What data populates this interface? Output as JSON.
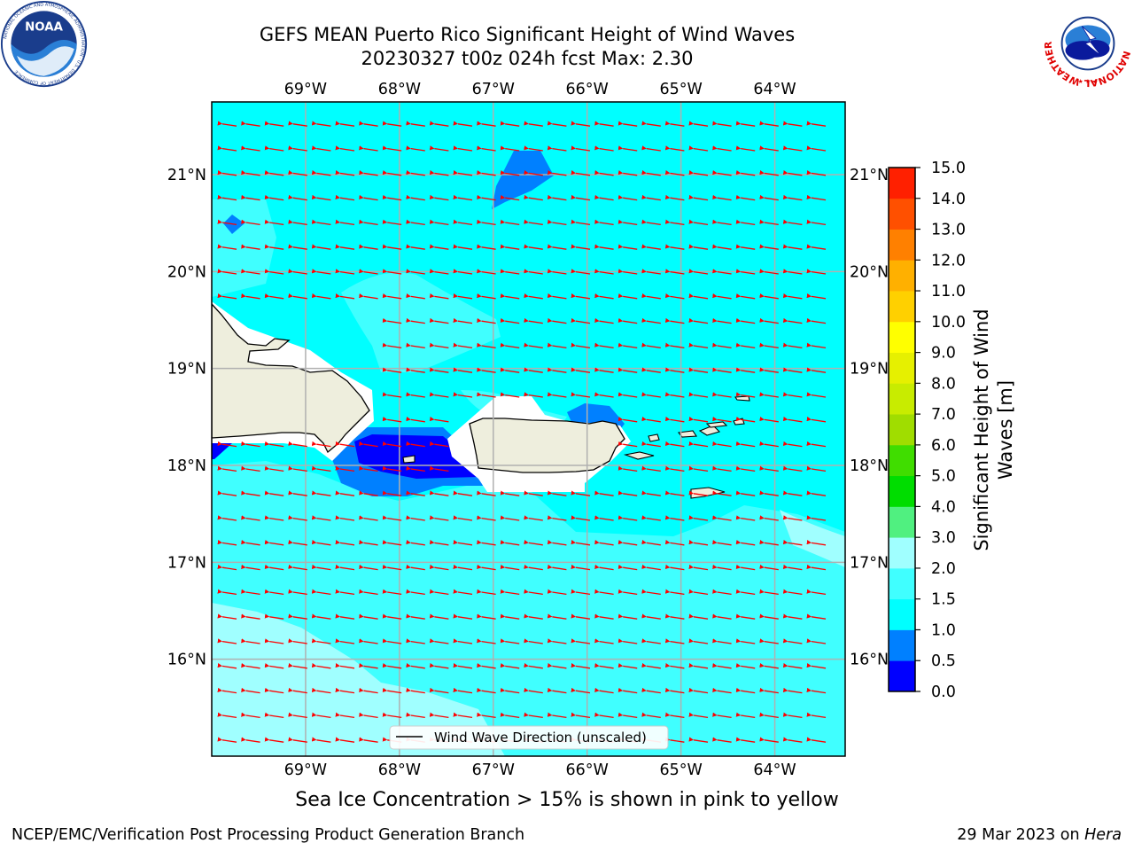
{
  "header": {
    "title_line1": "GEFS MEAN Puerto Rico Significant Height of Wind Waves",
    "title_line2": "20230327 t00z 024h fcst   Max: 2.30"
  },
  "logos": {
    "left": {
      "icon": "noaa-logo",
      "text": "NOAA",
      "ring_text": "NATIONAL OCEANIC AND ATMOSPHERIC ADMINISTRATION · U.S. DEPARTMENT OF COMMERCE"
    },
    "right": {
      "icon": "nws-logo",
      "ring_text": "NATIONAL WEATHER SERVICE"
    }
  },
  "map": {
    "lon_range": [
      -70.0,
      -63.25
    ],
    "lat_range": [
      15.0,
      21.75
    ],
    "lon_labels": [
      {
        "lon": -69,
        "label": "69°W"
      },
      {
        "lon": -68,
        "label": "68°W"
      },
      {
        "lon": -67,
        "label": "67°W"
      },
      {
        "lon": -66,
        "label": "66°W"
      },
      {
        "lon": -65,
        "label": "65°W"
      },
      {
        "lon": -64,
        "label": "64°W"
      }
    ],
    "lat_labels": [
      {
        "lat": 21,
        "label": "21°N"
      },
      {
        "lat": 20,
        "label": "20°N"
      },
      {
        "lat": 19,
        "label": "19°N"
      },
      {
        "lat": 18,
        "label": "18°N"
      },
      {
        "lat": 17,
        "label": "17°N"
      },
      {
        "lat": 16,
        "label": "16°N"
      }
    ],
    "grid": true,
    "ocean_base_color": "#00ffff",
    "land_color": "#eeeedd",
    "arrow_color": "#ff0000",
    "wind_wave_direction": "westward (easterly trades)",
    "legend_label": "Wind Wave Direction (unscaled)",
    "legend_placement": "lower center"
  },
  "colorbar": {
    "label": "Significant Height of Wind Waves [m]",
    "levels": [
      "0.0",
      "0.5",
      "1.0",
      "1.5",
      "2.0",
      "3.0",
      "4.0",
      "5.0",
      "6.0",
      "7.0",
      "8.0",
      "9.0",
      "10.0",
      "11.0",
      "12.0",
      "13.0",
      "14.0",
      "15.0"
    ],
    "colors": [
      "#0000ff",
      "#0080ff",
      "#00ffff",
      "#40ffff",
      "#a0ffff",
      "#50f080",
      "#00dd00",
      "#40dd00",
      "#a0dd00",
      "#c8ec00",
      "#e6f000",
      "#ffff00",
      "#ffd000",
      "#ffb000",
      "#ff8000",
      "#ff5000",
      "#ff2000"
    ]
  },
  "footer": {
    "ice_note": "Sea Ice Concentration > 15% is shown in pink to yellow",
    "left": "NCEP/EMC/Verification Post Processing Product Generation Branch",
    "right_prefix": "29 Mar 2023 on ",
    "right_host": "Hera"
  }
}
